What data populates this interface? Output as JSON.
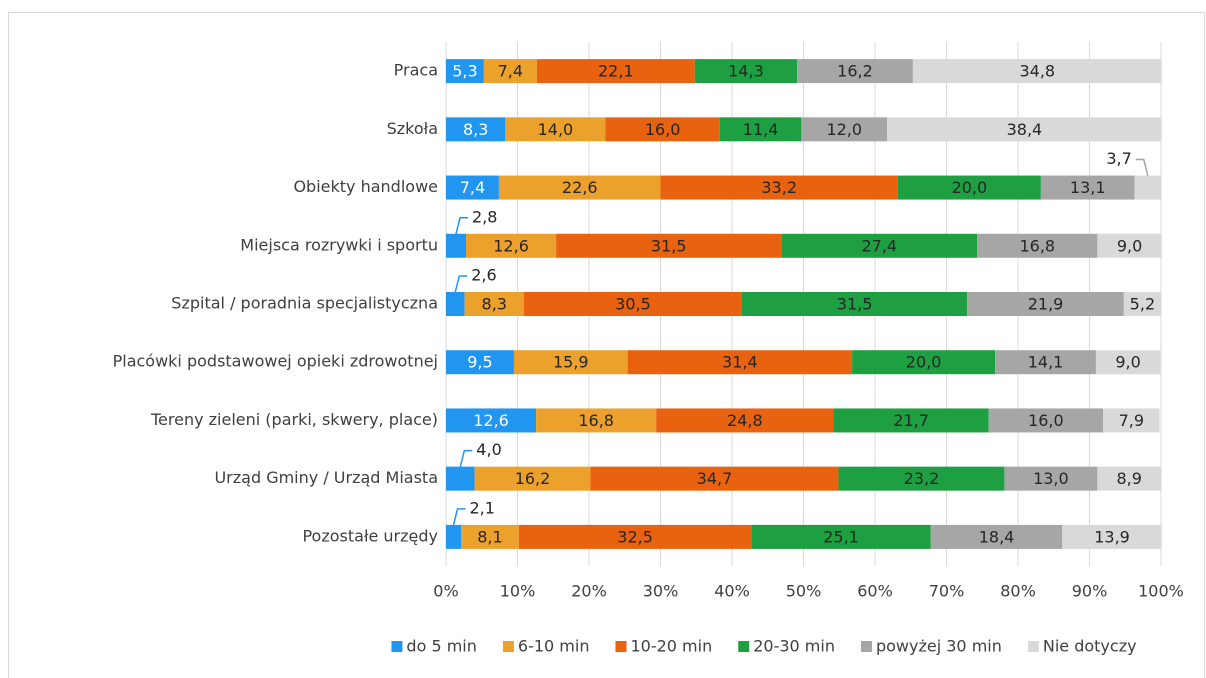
{
  "chart_data": {
    "type": "bar_stacked_percent_horizontal",
    "categories": [
      "Praca",
      "Szkoła",
      "Obiekty handlowe",
      "Miejsca rozrywki i sportu",
      "Szpital / poradnia specjalistyczna",
      "Placówki podstawowej opieki zdrowotnej",
      "Tereny zieleni (parki, skwery, place)",
      "Urząd Gminy / Urząd Miasta",
      "Pozostałe urzędy"
    ],
    "series": [
      {
        "name": "do 5 min",
        "color": "#2196f0",
        "values": [
          5.3,
          8.3,
          7.4,
          2.8,
          2.6,
          9.5,
          12.6,
          4.0,
          2.1
        ],
        "value_labels": [
          "5,3",
          "8,3",
          "7,4",
          "2,8",
          "2,6",
          "9,5",
          "12,6",
          "4,0",
          "2,1"
        ]
      },
      {
        "name": "6-10 min",
        "color": "#eba12b",
        "values": [
          7.4,
          14.0,
          22.6,
          12.6,
          8.3,
          15.9,
          16.8,
          16.2,
          8.1
        ],
        "value_labels": [
          "7,4",
          "14,0",
          "22,6",
          "12,6",
          "8,3",
          "15,9",
          "16,8",
          "16,2",
          "8,1"
        ]
      },
      {
        "name": "10-20 min",
        "color": "#e8620f",
        "values": [
          22.1,
          16.0,
          33.2,
          31.5,
          30.5,
          31.4,
          24.8,
          34.7,
          32.5
        ],
        "value_labels": [
          "22,1",
          "16,0",
          "33,2",
          "31,5",
          "30,5",
          "31,4",
          "24,8",
          "34,7",
          "32,5"
        ]
      },
      {
        "name": "20-30 min",
        "color": "#1d9f42",
        "values": [
          14.3,
          11.4,
          20.0,
          27.4,
          31.5,
          20.0,
          21.7,
          23.2,
          25.1
        ],
        "value_labels": [
          "14,3",
          "11,4",
          "20,0",
          "27,4",
          "31,5",
          "20,0",
          "21,7",
          "23,2",
          "25,1"
        ]
      },
      {
        "name": "powyżej 30 min",
        "color": "#a6a6a6",
        "values": [
          16.2,
          12.0,
          13.1,
          16.8,
          21.9,
          14.1,
          16.0,
          13.0,
          18.4
        ],
        "value_labels": [
          "16,2",
          "12,0",
          "13,1",
          "16,8",
          "21,9",
          "14,1",
          "16,0",
          "13,0",
          "18,4"
        ]
      },
      {
        "name": "Nie dotyczy",
        "color": "#d9d9d9",
        "values": [
          34.8,
          38.4,
          3.7,
          9.0,
          5.2,
          9.0,
          7.9,
          8.9,
          13.9
        ],
        "value_labels": [
          "34,8",
          "38,4",
          "3,7",
          "9,0",
          "5,2",
          "9,0",
          "7,9",
          "8,9",
          "13,9"
        ]
      }
    ],
    "xlim": [
      0,
      100
    ],
    "xticks": [
      {
        "value": 0,
        "label": "0%"
      },
      {
        "value": 10,
        "label": "10%"
      },
      {
        "value": 20,
        "label": "20%"
      },
      {
        "value": 30,
        "label": "30%"
      },
      {
        "value": 40,
        "label": "40%"
      },
      {
        "value": 50,
        "label": "50%"
      },
      {
        "value": 60,
        "label": "60%"
      },
      {
        "value": 70,
        "label": "70%"
      },
      {
        "value": 80,
        "label": "80%"
      },
      {
        "value": 90,
        "label": "90%"
      },
      {
        "value": 100,
        "label": "100%"
      }
    ],
    "grid": true,
    "legend": "bottom"
  }
}
